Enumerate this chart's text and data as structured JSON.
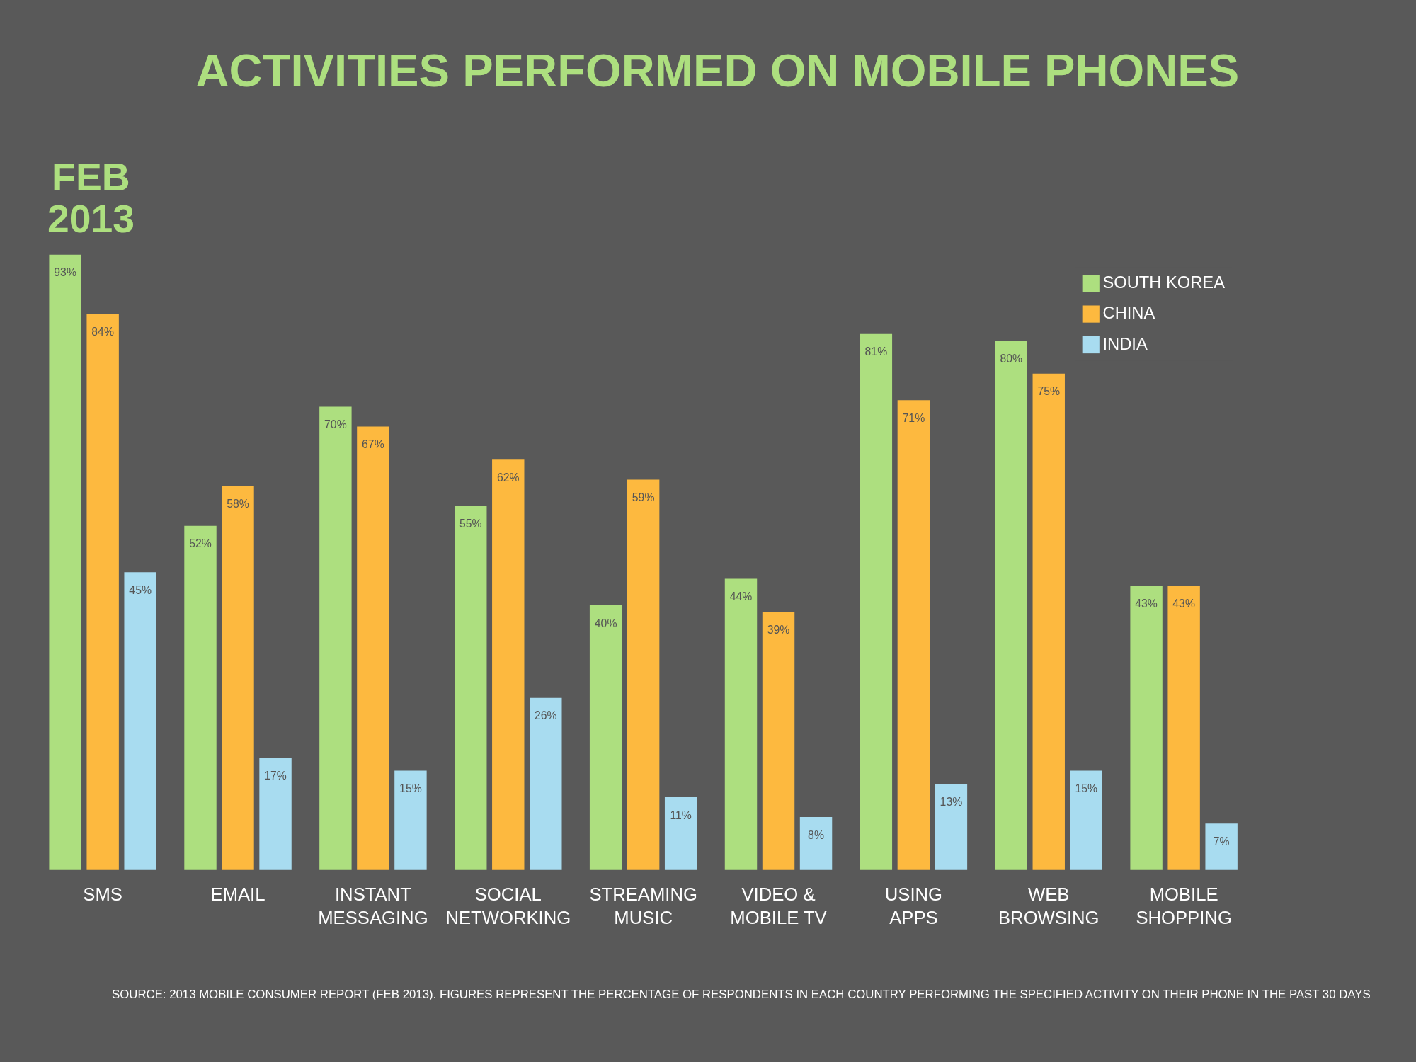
{
  "chart_data": {
    "type": "bar",
    "title": "ACTIVITIES PERFORMED ON MOBILE PHONES",
    "categories": [
      "SMS",
      "EMAIL",
      "INSTANT MESSAGING",
      "SOCIAL NETWORKING",
      "STREAMING MUSIC",
      "VIDEO & MOBILE TV",
      "USING APPS",
      "WEB BROWSING",
      "MOBILE SHOPPING"
    ],
    "series": [
      {
        "name": "SOUTH KOREA",
        "color": "#addf7f",
        "values": [
          93,
          52,
          70,
          55,
          40,
          44,
          81,
          80,
          43
        ],
        "value_labels": [
          "93%",
          "52%",
          "70%",
          "55%",
          "40%",
          "44%",
          "81%",
          "80%",
          "43%"
        ]
      },
      {
        "name": "CHINA",
        "color": "#fdb93f",
        "values": [
          84,
          58,
          67,
          62,
          59,
          39,
          71,
          75,
          43
        ],
        "value_labels": [
          "84%",
          "58%",
          "67%",
          "62%",
          "59%",
          "39%",
          "71%",
          "75%",
          "43%"
        ]
      },
      {
        "name": "INDIA",
        "color": "#a8dcf0",
        "values": [
          45,
          17,
          15,
          26,
          11,
          8,
          13,
          15,
          7
        ],
        "value_labels": [
          "45%",
          "17%",
          "15%",
          "26%",
          "11%",
          "8%",
          "13%",
          "15%",
          "7%"
        ]
      }
    ],
    "annotations": [
      "FEB 2013",
      "SOURCE: 2013 MOBILE CONSUMER REPORT (FEB 2013). FIGURES REPRESENT THE PERCENTAGE OF RESPONDENTS IN EACH COUNTRY PERFORMING THE SPECIFIED ACTIVITY ON THEIR PHONE IN THE PAST 30 DAYS"
    ],
    "legend": "top right",
    "grid": false
  }
}
